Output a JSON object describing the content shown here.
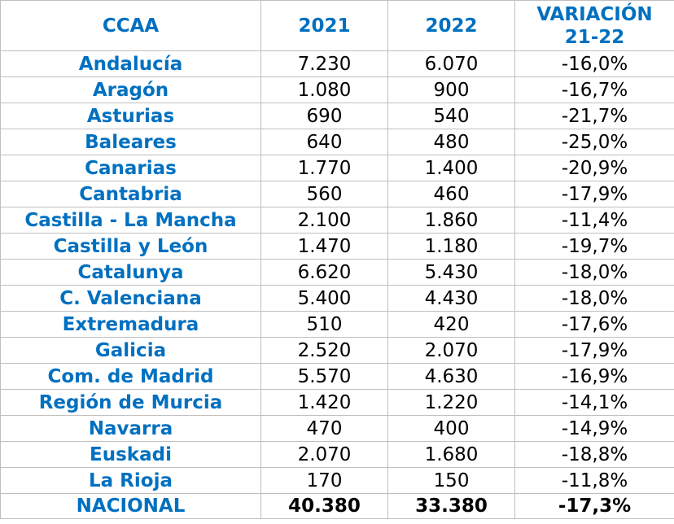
{
  "table": {
    "headers": [
      "CCAA",
      "2021",
      "2022",
      "VARIACIÓN 21-22"
    ],
    "header_var_line1": "VARIACIÓN",
    "header_var_line2": "21-22",
    "rows": [
      {
        "ccaa": "Andalucía",
        "y2021": "7.230",
        "y2022": "6.070",
        "var": "-16,0%"
      },
      {
        "ccaa": "Aragón",
        "y2021": "1.080",
        "y2022": "900",
        "var": "-16,7%"
      },
      {
        "ccaa": "Asturias",
        "y2021": "690",
        "y2022": "540",
        "var": "-21,7%"
      },
      {
        "ccaa": "Baleares",
        "y2021": "640",
        "y2022": "480",
        "var": "-25,0%"
      },
      {
        "ccaa": "Canarias",
        "y2021": "1.770",
        "y2022": "1.400",
        "var": "-20,9%"
      },
      {
        "ccaa": "Cantabria",
        "y2021": "560",
        "y2022": "460",
        "var": "-17,9%"
      },
      {
        "ccaa": "Castilla - La Mancha",
        "y2021": "2.100",
        "y2022": "1.860",
        "var": "-11,4%"
      },
      {
        "ccaa": "Castilla y León",
        "y2021": "1.470",
        "y2022": "1.180",
        "var": "-19,7%"
      },
      {
        "ccaa": "Catalunya",
        "y2021": "6.620",
        "y2022": "5.430",
        "var": "-18,0%"
      },
      {
        "ccaa": "C. Valenciana",
        "y2021": "5.400",
        "y2022": "4.430",
        "var": "-18,0%"
      },
      {
        "ccaa": "Extremadura",
        "y2021": "510",
        "y2022": "420",
        "var": "-17,6%"
      },
      {
        "ccaa": "Galicia",
        "y2021": "2.520",
        "y2022": "2.070",
        "var": "-17,9%"
      },
      {
        "ccaa": "Com. de Madrid",
        "y2021": "5.570",
        "y2022": "4.630",
        "var": "-16,9%"
      },
      {
        "ccaa": "Región de Murcia",
        "y2021": "1.420",
        "y2022": "1.220",
        "var": "-14,1%"
      },
      {
        "ccaa": "Navarra",
        "y2021": "470",
        "y2022": "400",
        "var": "-14,9%"
      },
      {
        "ccaa": "Euskadi",
        "y2021": "2.070",
        "y2022": "1.680",
        "var": "-18,8%"
      },
      {
        "ccaa": "La Rioja",
        "y2021": "170",
        "y2022": "150",
        "var": "-11,8%"
      }
    ],
    "total": {
      "ccaa": "NACIONAL",
      "y2021": "40.380",
      "y2022": "33.380",
      "var": "-17,3%"
    }
  },
  "colors": {
    "header_text": "#0070c0",
    "region_text": "#0070c0",
    "value_text": "#000000",
    "grid": "#bfbfbf"
  }
}
